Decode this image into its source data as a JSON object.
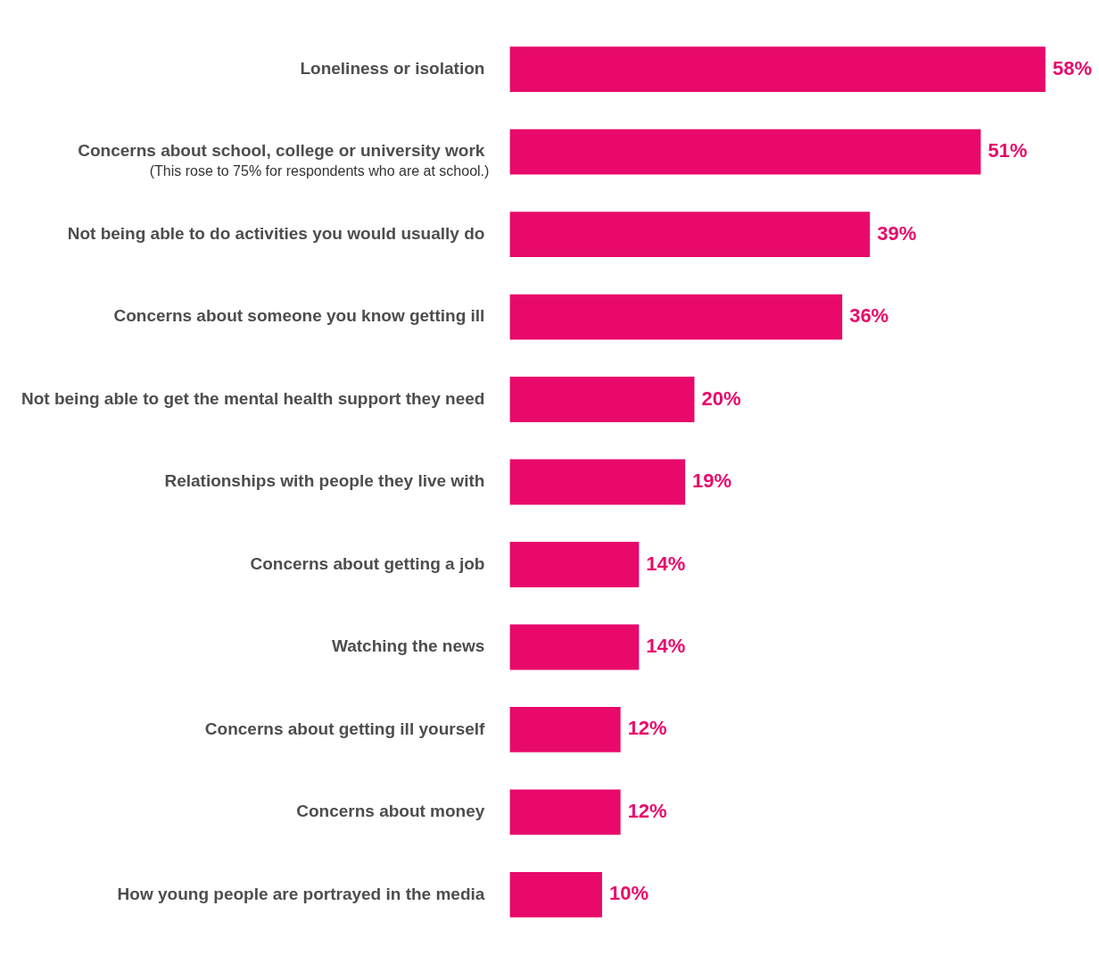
{
  "chart_data": {
    "type": "bar",
    "orientation": "horizontal",
    "color": "#e8096a",
    "categories": [
      "Loneliness or isolation",
      "Concerns about school, college or university work",
      "Not being able to do activities you would usually do",
      "Concerns about someone you know getting ill",
      "Not being able to get the mental health support they need",
      "Relationships with people they live with",
      "Concerns about getting a job",
      "Watching the news",
      "Concerns about getting ill yourself",
      "Concerns about money",
      "How young people are portrayed in the media"
    ],
    "values": [
      58,
      51,
      39,
      36,
      20,
      19,
      14,
      14,
      12,
      12,
      10
    ],
    "value_labels": [
      "58%",
      "51%",
      "39%",
      "36%",
      "20%",
      "19%",
      "14%",
      "14%",
      "12%",
      "12%",
      "10%"
    ],
    "annotations": [
      "(This rose to 75% for respondents who are at school.)"
    ]
  }
}
